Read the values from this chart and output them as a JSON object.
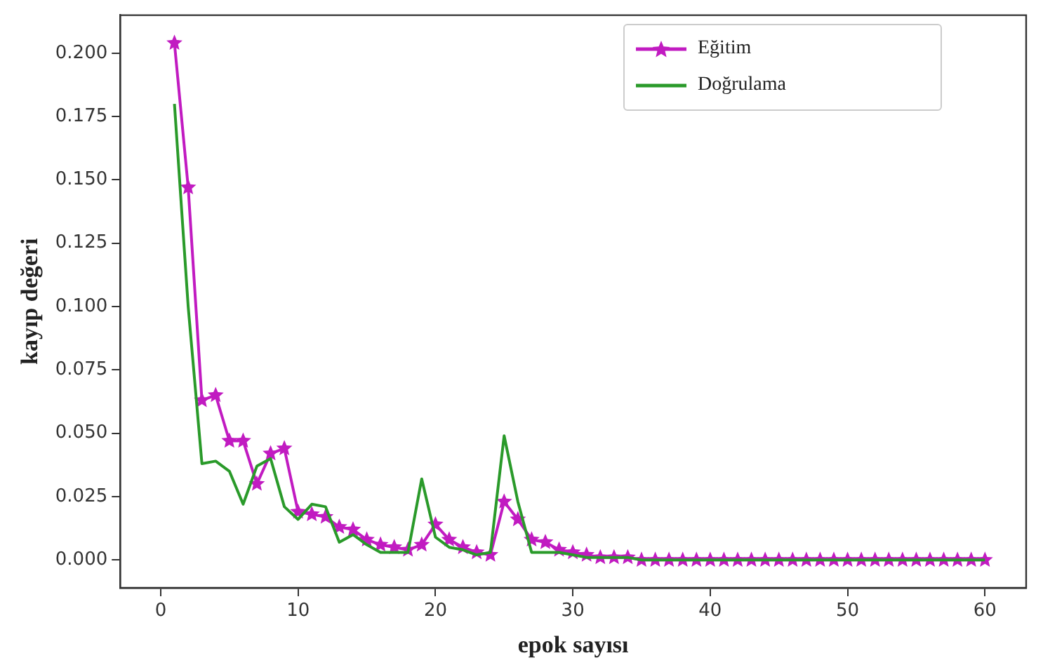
{
  "chart_data": {
    "type": "line",
    "xlabel": "epok sayısı",
    "ylabel": "kayıp değeri",
    "x": [
      1,
      2,
      3,
      4,
      5,
      6,
      7,
      8,
      9,
      10,
      11,
      12,
      13,
      14,
      15,
      16,
      17,
      18,
      19,
      20,
      21,
      22,
      23,
      24,
      25,
      26,
      27,
      28,
      29,
      30,
      31,
      32,
      33,
      34,
      35,
      36,
      37,
      38,
      39,
      40,
      41,
      42,
      43,
      44,
      45,
      46,
      47,
      48,
      49,
      50,
      51,
      52,
      53,
      54,
      55,
      56,
      57,
      58,
      59,
      60
    ],
    "series": [
      {
        "name": "Eğitim",
        "color": "#c11bc1",
        "marker": "star",
        "values": [
          0.204,
          0.147,
          0.063,
          0.065,
          0.047,
          0.047,
          0.03,
          0.042,
          0.044,
          0.019,
          0.018,
          0.017,
          0.013,
          0.012,
          0.008,
          0.006,
          0.005,
          0.004,
          0.006,
          0.014,
          0.008,
          0.005,
          0.003,
          0.002,
          0.023,
          0.016,
          0.008,
          0.007,
          0.004,
          0.003,
          0.002,
          0.001,
          0.001,
          0.001,
          0,
          0,
          0,
          0,
          0,
          0,
          0,
          0,
          0,
          0,
          0,
          0,
          0,
          0,
          0,
          0,
          0,
          0,
          0,
          0,
          0,
          0,
          0,
          0,
          0,
          0
        ]
      },
      {
        "name": "Doğrulama",
        "color": "#2a9a2a",
        "marker": "none",
        "values": [
          0.18,
          0.1,
          0.038,
          0.039,
          0.035,
          0.022,
          0.037,
          0.04,
          0.021,
          0.016,
          0.022,
          0.021,
          0.007,
          0.01,
          0.006,
          0.003,
          0.003,
          0.003,
          0.032,
          0.009,
          0.005,
          0.004,
          0.002,
          0.003,
          0.049,
          0.023,
          0.003,
          0.003,
          0.003,
          0.002,
          0.001,
          0.001,
          0.001,
          0.001,
          0,
          0,
          0,
          0,
          0,
          0,
          0,
          0,
          0,
          0,
          0,
          0,
          0,
          0,
          0,
          0,
          0,
          0,
          0,
          0,
          0,
          0,
          0,
          0,
          0,
          0
        ]
      }
    ],
    "xlim": [
      -2.95,
      63
    ],
    "xticks": [
      0,
      10,
      20,
      30,
      40,
      50,
      60
    ],
    "ylim": [
      -0.011,
      0.215
    ],
    "yticks": [
      {
        "value": 0,
        "label": "0.000"
      },
      {
        "value": 0.025,
        "label": "0.025"
      },
      {
        "value": 0.05,
        "label": "0.050"
      },
      {
        "value": 0.075,
        "label": "0.075"
      },
      {
        "value": 0.1,
        "label": "0.100"
      },
      {
        "value": 0.125,
        "label": "0.125"
      },
      {
        "value": 0.15,
        "label": "0.150"
      },
      {
        "value": 0.175,
        "label": "0.175"
      },
      {
        "value": 0.2,
        "label": "0.200"
      }
    ],
    "grid": false,
    "legend": "top right",
    "line_style": "solid"
  }
}
